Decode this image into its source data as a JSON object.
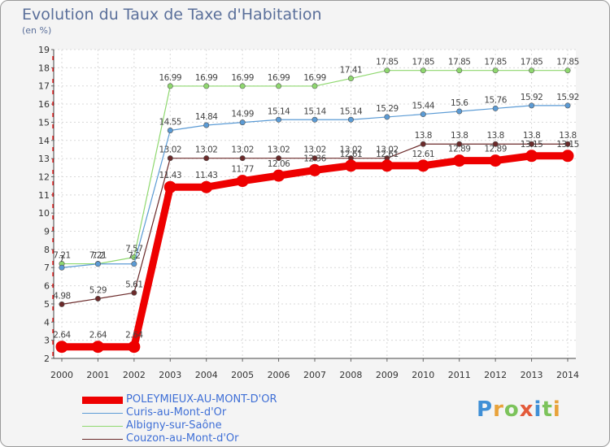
{
  "title": "Evolution du Taux de Taxe d'Habitation",
  "subtitle": "(en %)",
  "logo": "Proxiti",
  "colors": {
    "title": "#5a6f9a",
    "legend_text": "#3f6fd6",
    "axis": "#333333"
  },
  "chart_data": {
    "type": "line",
    "title": "Evolution du Taux de Taxe d'Habitation",
    "ylabel": "(en %)",
    "xlabel": "",
    "ylim": [
      2,
      19
    ],
    "yticks": [
      2,
      3,
      4,
      5,
      6,
      7,
      8,
      9,
      10,
      11,
      12,
      13,
      14,
      15,
      16,
      17,
      18,
      19
    ],
    "x": [
      "2000",
      "2001",
      "2002",
      "2003",
      "2004",
      "2005",
      "2006",
      "2007",
      "2008",
      "2009",
      "2010",
      "2011",
      "2012",
      "2013",
      "2014"
    ],
    "series": [
      {
        "name": "Albigny-sur-Saône",
        "color": "#8fd86f",
        "values": [
          7.21,
          7.21,
          7.57,
          16.99,
          16.99,
          16.99,
          16.99,
          16.99,
          17.41,
          17.85,
          17.85,
          17.85,
          17.85,
          17.85,
          17.85
        ],
        "labels": [
          "7.21",
          "7.21",
          "7.57",
          "16.99",
          "16.99",
          "16.99",
          "16.99",
          "16.99",
          "17.41",
          "17.85",
          "17.85",
          "17.85",
          "17.85",
          "17.85",
          "17.85"
        ]
      },
      {
        "name": "Curis-au-Mont-d'Or",
        "color": "#5b9bd5",
        "values": [
          7.0,
          7.2,
          7.2,
          14.55,
          14.84,
          14.99,
          15.14,
          15.14,
          15.14,
          15.29,
          15.44,
          15.6,
          15.76,
          15.92,
          15.92
        ],
        "labels": [
          "7",
          "7.2",
          "7.2",
          "14.55",
          "14.84",
          "14.99",
          "15.14",
          "15.14",
          "15.14",
          "15.29",
          "15.44",
          "15.6",
          "15.76",
          "15.92",
          "15.92"
        ]
      },
      {
        "name": "Couzon-au-Mont-d'Or",
        "color": "#6b2a2a",
        "values": [
          4.98,
          5.29,
          5.61,
          13.02,
          13.02,
          13.02,
          13.02,
          13.02,
          13.02,
          13.02,
          13.8,
          13.8,
          13.8,
          13.8,
          13.8
        ],
        "labels": [
          "4.98",
          "5.29",
          "5.61",
          "13.02",
          "13.02",
          "13.02",
          "13.02",
          "13.02",
          "13.02",
          "13.02",
          "13.8",
          "13.8",
          "13.8",
          "13.8",
          "13.8"
        ]
      },
      {
        "name": "POLEYMIEUX-AU-MONT-D'OR",
        "color": "#ee0000",
        "values": [
          2.64,
          2.64,
          2.64,
          11.43,
          11.43,
          11.77,
          12.06,
          12.36,
          12.61,
          12.61,
          12.61,
          12.89,
          12.89,
          13.15,
          13.15
        ],
        "labels": [
          "2.64",
          "2.64",
          "2.64",
          "11.43",
          "11.43",
          "11.77",
          "12.06",
          "12.36",
          "12.61",
          "12.61",
          "12.61",
          "12.89",
          "12.89",
          "13.15",
          "13.15"
        ]
      }
    ],
    "legend": [
      "POLEYMIEUX-AU-MONT-D'OR",
      "Curis-au-Mont-d'Or",
      "Albigny-sur-Saône",
      "Couzon-au-Mont-d'Or"
    ]
  }
}
